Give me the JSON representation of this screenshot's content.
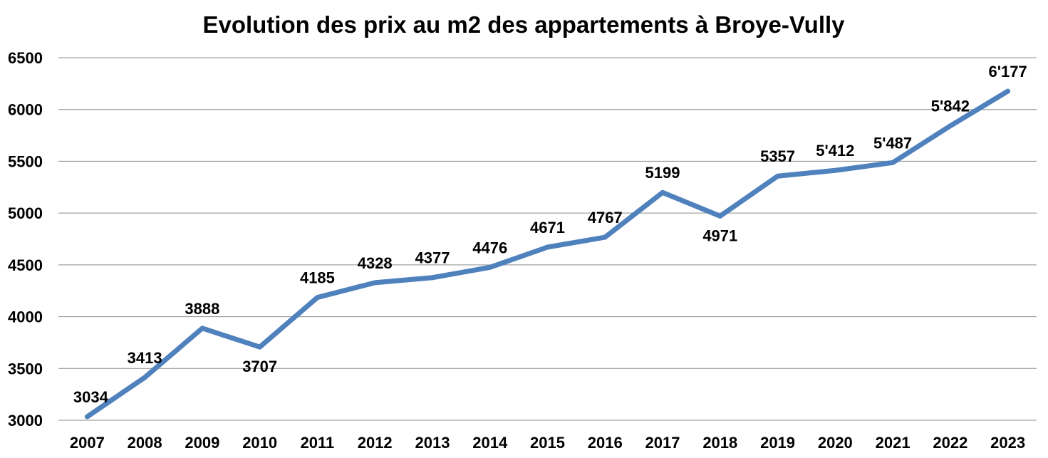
{
  "chart_data": {
    "type": "line",
    "title": "Evolution des prix au m2 des appartements à Broye-Vully",
    "categories": [
      "2007",
      "2008",
      "2009",
      "2010",
      "2011",
      "2012",
      "2013",
      "2014",
      "2015",
      "2016",
      "2017",
      "2018",
      "2019",
      "2020",
      "2021",
      "2022",
      "2023"
    ],
    "series": [
      {
        "values": [
          3034,
          3413,
          3888,
          3707,
          4185,
          4328,
          4377,
          4476,
          4671,
          4767,
          5199,
          4971,
          5357,
          5412,
          5487,
          5842,
          6177
        ],
        "labels": [
          "3034",
          "3413",
          "3888",
          "3707",
          "4185",
          "4328",
          "4377",
          "4476",
          "4671",
          "4767",
          "5199",
          "4971",
          "5357",
          "5'412",
          "5'487",
          "5'842",
          "6'177"
        ],
        "label_positions": [
          "above",
          "above",
          "above",
          "below",
          "above",
          "above",
          "above",
          "above",
          "above",
          "above",
          "above",
          "below",
          "above",
          "above",
          "above",
          "above",
          "above"
        ],
        "color": "#4f81bd"
      }
    ],
    "yticks": [
      "3000",
      "3500",
      "4000",
      "4500",
      "5000",
      "5500",
      "6000",
      "6500"
    ],
    "ylim": [
      3000,
      6500
    ],
    "grid": true,
    "legend": "none",
    "xlabel": "",
    "ylabel": ""
  }
}
